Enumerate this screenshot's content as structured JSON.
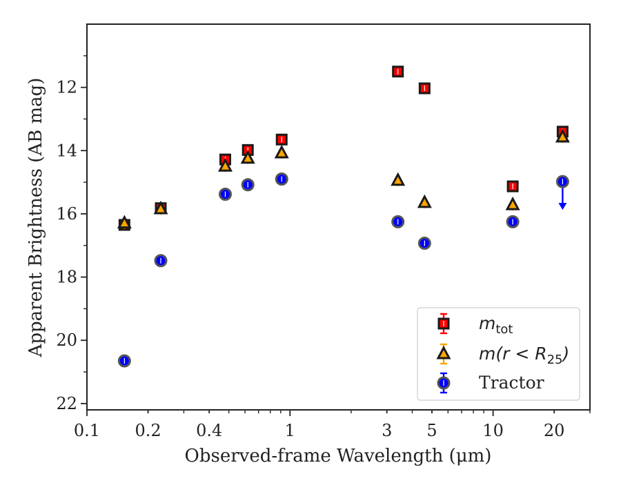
{
  "chart_data": {
    "type": "scatter",
    "xlabel": "Observed-frame Wavelength (μm)",
    "ylabel": "Apparent Brightness (AB mag)",
    "x_scale": "log",
    "xlim": [
      0.1,
      30
    ],
    "ylim": [
      22.2,
      10.0
    ],
    "y_inverted": true,
    "grid": false,
    "legend_position": "lower-right",
    "x_ticks": [
      {
        "value": 0.1,
        "label": "0.1"
      },
      {
        "value": 0.2,
        "label": "0.2"
      },
      {
        "value": 0.4,
        "label": "0.4"
      },
      {
        "value": 1,
        "label": "1"
      },
      {
        "value": 3,
        "label": "3"
      },
      {
        "value": 5,
        "label": "5"
      },
      {
        "value": 10,
        "label": "10"
      },
      {
        "value": 20,
        "label": "20"
      }
    ],
    "y_ticks": [
      {
        "value": 12,
        "label": "12"
      },
      {
        "value": 14,
        "label": "14"
      },
      {
        "value": 16,
        "label": "16"
      },
      {
        "value": 18,
        "label": "18"
      },
      {
        "value": 20,
        "label": "20"
      },
      {
        "value": 22,
        "label": "22"
      }
    ],
    "series": [
      {
        "name": "m_tot",
        "legend_label": "m",
        "legend_sub": "tot",
        "marker": "square",
        "color": "#ff0000",
        "edge_color": "#1a1a1a",
        "points": [
          {
            "x": 0.153,
            "y": 16.35
          },
          {
            "x": 0.231,
            "y": 15.82
          },
          {
            "x": 0.48,
            "y": 14.28
          },
          {
            "x": 0.62,
            "y": 13.98
          },
          {
            "x": 0.91,
            "y": 13.65
          },
          {
            "x": 3.4,
            "y": 11.5
          },
          {
            "x": 4.6,
            "y": 12.03
          },
          {
            "x": 12.5,
            "y": 15.13
          },
          {
            "x": 22.0,
            "y": 13.4
          }
        ]
      },
      {
        "name": "m(r < R25)",
        "legend_label": "m(r < R",
        "legend_sub": "25",
        "legend_close": ")",
        "marker": "triangle",
        "color": "#ffa500",
        "edge_color": "#1a1a1a",
        "points": [
          {
            "x": 0.153,
            "y": 16.3
          },
          {
            "x": 0.231,
            "y": 15.85
          },
          {
            "x": 0.48,
            "y": 14.5
          },
          {
            "x": 0.62,
            "y": 14.25
          },
          {
            "x": 0.91,
            "y": 14.08
          },
          {
            "x": 3.4,
            "y": 14.95
          },
          {
            "x": 4.6,
            "y": 15.65
          },
          {
            "x": 12.5,
            "y": 15.72
          },
          {
            "x": 22.0,
            "y": 13.58
          }
        ]
      },
      {
        "name": "Tractor",
        "legend_label": "Tractor",
        "marker": "circle",
        "color": "#0000ff",
        "edge_color": "#555555",
        "points": [
          {
            "x": 0.153,
            "y": 20.65
          },
          {
            "x": 0.231,
            "y": 17.48
          },
          {
            "x": 0.48,
            "y": 15.38
          },
          {
            "x": 0.62,
            "y": 15.08
          },
          {
            "x": 0.91,
            "y": 14.9
          },
          {
            "x": 3.4,
            "y": 16.25
          },
          {
            "x": 4.6,
            "y": 16.93
          },
          {
            "x": 12.5,
            "y": 16.25
          },
          {
            "x": 22.0,
            "y": 14.98,
            "upper_limit": true
          }
        ]
      }
    ]
  }
}
